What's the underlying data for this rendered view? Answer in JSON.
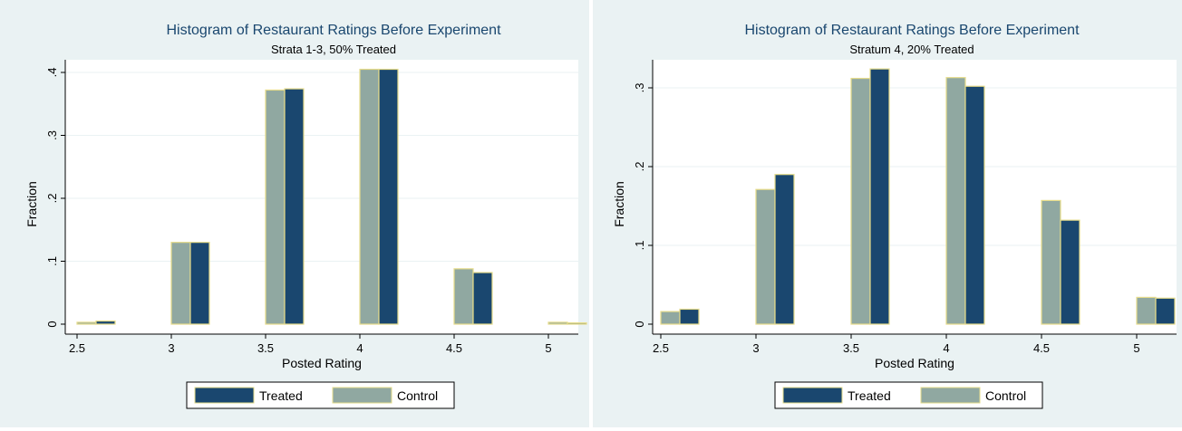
{
  "charts": [
    {
      "title": "Histogram of Restaurant Ratings Before Experiment",
      "subtitle": "Strata 1-3, 50% Treated",
      "xlabel": "Posted Rating",
      "ylabel": "Fraction",
      "xticks": [
        "2.5",
        "3",
        "3.5",
        "4",
        "4.5",
        "5"
      ],
      "yticks": [
        "0",
        ".1",
        ".2",
        ".3",
        ".4"
      ],
      "legend": {
        "treated": "Treated",
        "control": "Control"
      }
    },
    {
      "title": "Histogram of Restaurant Ratings Before Experiment",
      "subtitle": "Stratum 4, 20% Treated",
      "xlabel": "Posted Rating",
      "ylabel": "Fraction",
      "xticks": [
        "2.5",
        "3",
        "3.5",
        "4",
        "4.5",
        "5"
      ],
      "yticks": [
        "0",
        ".1",
        ".2",
        ".3"
      ],
      "legend": {
        "treated": "Treated",
        "control": "Control"
      }
    }
  ],
  "colors": {
    "treated": "#1a476f",
    "control": "#90a8a1",
    "bar_outline": "#e6dc8a",
    "title": "#1a476f",
    "panel_bg": "#eaf2f3",
    "plot_bg": "#ffffff",
    "grid": "#eaf2f3"
  },
  "chart_data": [
    {
      "type": "bar",
      "title": "Histogram of Restaurant Ratings Before Experiment",
      "subtitle": "Strata 1-3, 50% Treated",
      "xlabel": "Posted Rating",
      "ylabel": "Fraction",
      "categories": [
        2.5,
        3,
        3.5,
        4,
        4.5,
        5
      ],
      "xlim": [
        2.45,
        5.15
      ],
      "ylim": [
        0,
        0.42
      ],
      "grid": true,
      "legend_position": "bottom",
      "series": [
        {
          "name": "Control",
          "values": [
            0.003,
            0.13,
            0.372,
            0.405,
            0.088,
            0.003
          ]
        },
        {
          "name": "Treated",
          "values": [
            0.005,
            0.13,
            0.374,
            0.405,
            0.082,
            0.002
          ]
        }
      ]
    },
    {
      "type": "bar",
      "title": "Histogram of Restaurant Ratings Before Experiment",
      "subtitle": "Stratum 4, 20% Treated",
      "xlabel": "Posted Rating",
      "ylabel": "Fraction",
      "categories": [
        2.5,
        3,
        3.5,
        4,
        4.5,
        5
      ],
      "xlim": [
        2.45,
        5.1
      ],
      "ylim": [
        0,
        0.33
      ],
      "grid": true,
      "legend_position": "bottom",
      "series": [
        {
          "name": "Control",
          "values": [
            0.016,
            0.171,
            0.312,
            0.313,
            0.157,
            0.034
          ]
        },
        {
          "name": "Treated",
          "values": [
            0.019,
            0.19,
            0.324,
            0.302,
            0.132,
            0.033
          ]
        }
      ]
    }
  ]
}
